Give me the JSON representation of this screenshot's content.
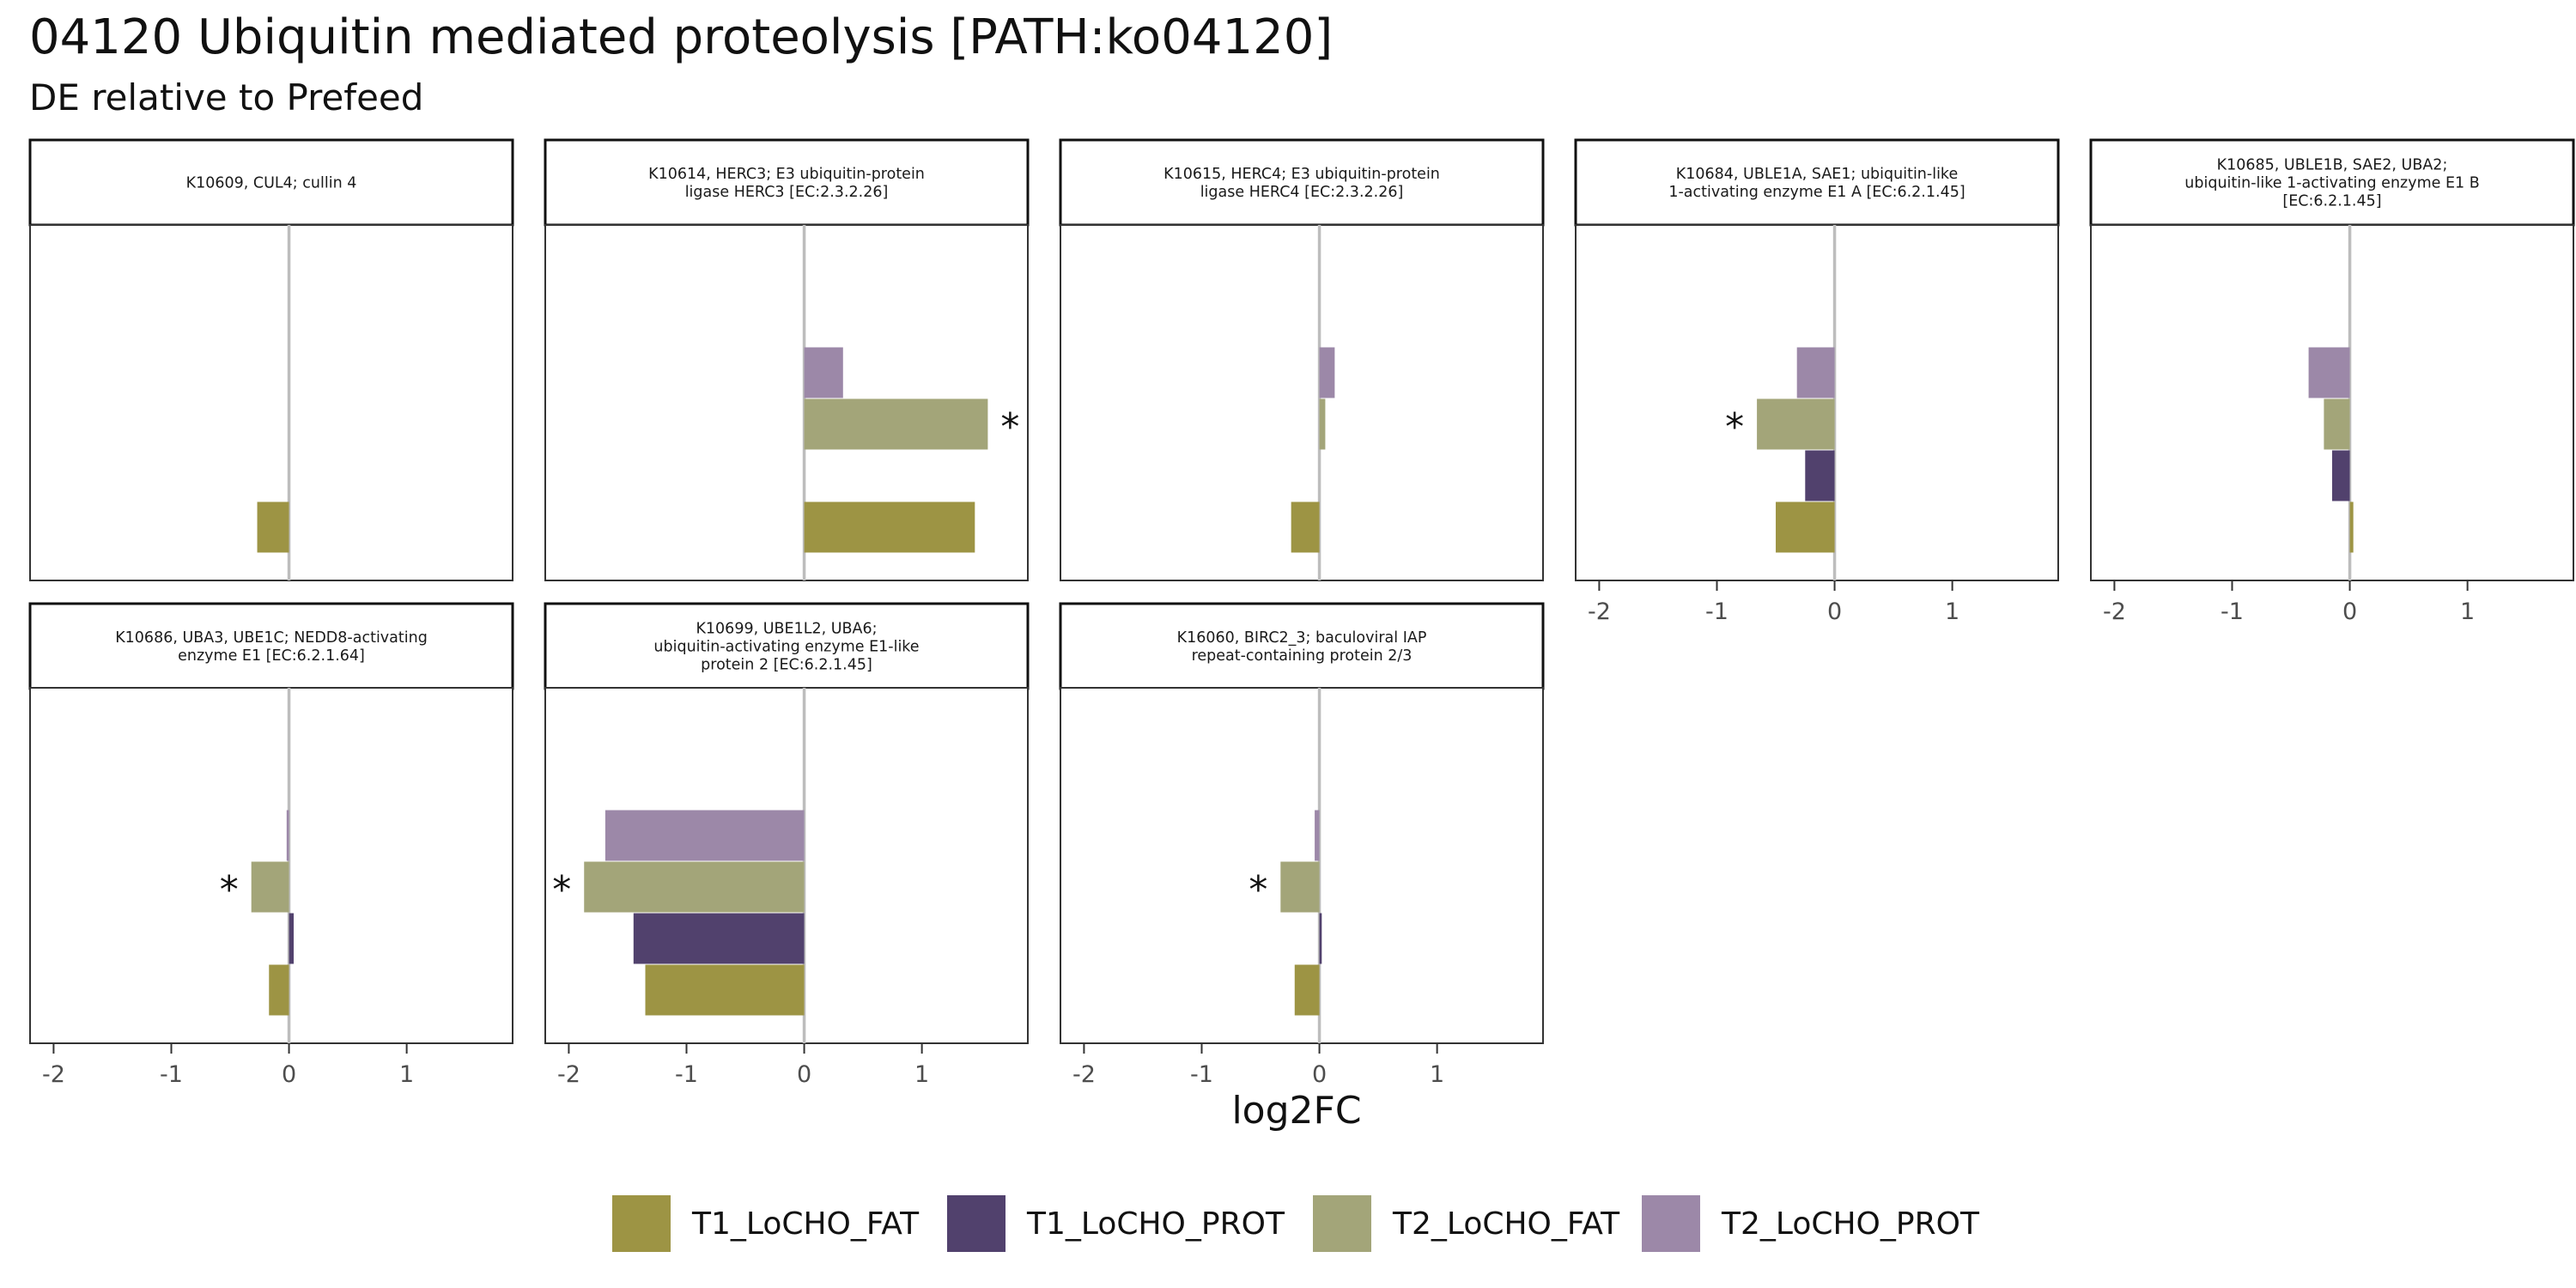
{
  "chart_data": {
    "type": "bar",
    "orientation": "horizontal",
    "title": "04120 Ubiquitin mediated proteolysis [PATH:ko04120]",
    "subtitle": "DE relative to Prefeed",
    "xlabel": "log2FC",
    "xlim": [
      -2.2,
      1.9
    ],
    "xticks": [
      -2,
      -1,
      0,
      1
    ],
    "legend_position": "bottom",
    "series": [
      {
        "name": "T1_LoCHO_FAT",
        "color": "#9D9444"
      },
      {
        "name": "T1_LoCHO_PROT",
        "color": "#51416D"
      },
      {
        "name": "T2_LoCHO_FAT",
        "color": "#A3A579"
      },
      {
        "name": "T2_LoCHO_PROT",
        "color": "#9C88A8"
      }
    ],
    "panels": [
      {
        "strip": [
          "K10609, CUL4; cullin 4"
        ],
        "values": [
          -0.27,
          null,
          null,
          null
        ],
        "significant": [
          false,
          false,
          false,
          false
        ]
      },
      {
        "strip": [
          "K10614, HERC3; E3 ubiquitin-protein",
          "ligase HERC3 [EC:2.3.2.26]"
        ],
        "values": [
          1.45,
          null,
          1.56,
          0.33
        ],
        "significant": [
          false,
          false,
          true,
          false
        ]
      },
      {
        "strip": [
          "K10615, HERC4; E3 ubiquitin-protein",
          "ligase HERC4 [EC:2.3.2.26]"
        ],
        "values": [
          -0.24,
          null,
          0.05,
          0.13
        ],
        "significant": [
          false,
          false,
          false,
          false
        ]
      },
      {
        "strip": [
          "K10684, UBLE1A, SAE1; ubiquitin-like",
          "1-activating enzyme E1 A [EC:6.2.1.45]"
        ],
        "values": [
          -0.5,
          -0.25,
          -0.66,
          -0.32
        ],
        "significant": [
          false,
          false,
          true,
          false
        ]
      },
      {
        "strip": [
          "K10685, UBLE1B, SAE2, UBA2;",
          "ubiquitin-like 1-activating enzyme E1 B",
          "[EC:6.2.1.45]"
        ],
        "values": [
          0.03,
          -0.15,
          -0.22,
          -0.35
        ],
        "significant": [
          false,
          false,
          false,
          false
        ]
      },
      {
        "strip": [
          "K10686, UBA3, UBE1C; NEDD8-activating",
          "enzyme E1 [EC:6.2.1.64]"
        ],
        "values": [
          -0.17,
          0.04,
          -0.32,
          -0.02
        ],
        "significant": [
          false,
          false,
          true,
          false
        ]
      },
      {
        "strip": [
          "K10699, UBE1L2, UBA6;",
          "ubiquitin-activating enzyme E1-like",
          "protein 2 [EC:6.2.1.45]"
        ],
        "values": [
          -1.35,
          -1.45,
          -1.87,
          -1.69
        ],
        "significant": [
          false,
          false,
          true,
          false
        ]
      },
      {
        "strip": [
          "K16060, BIRC2_3; baculoviral IAP",
          "repeat-containing protein 2/3"
        ],
        "values": [
          -0.21,
          0.02,
          -0.33,
          -0.04
        ],
        "significant": [
          false,
          false,
          true,
          false
        ]
      }
    ]
  }
}
